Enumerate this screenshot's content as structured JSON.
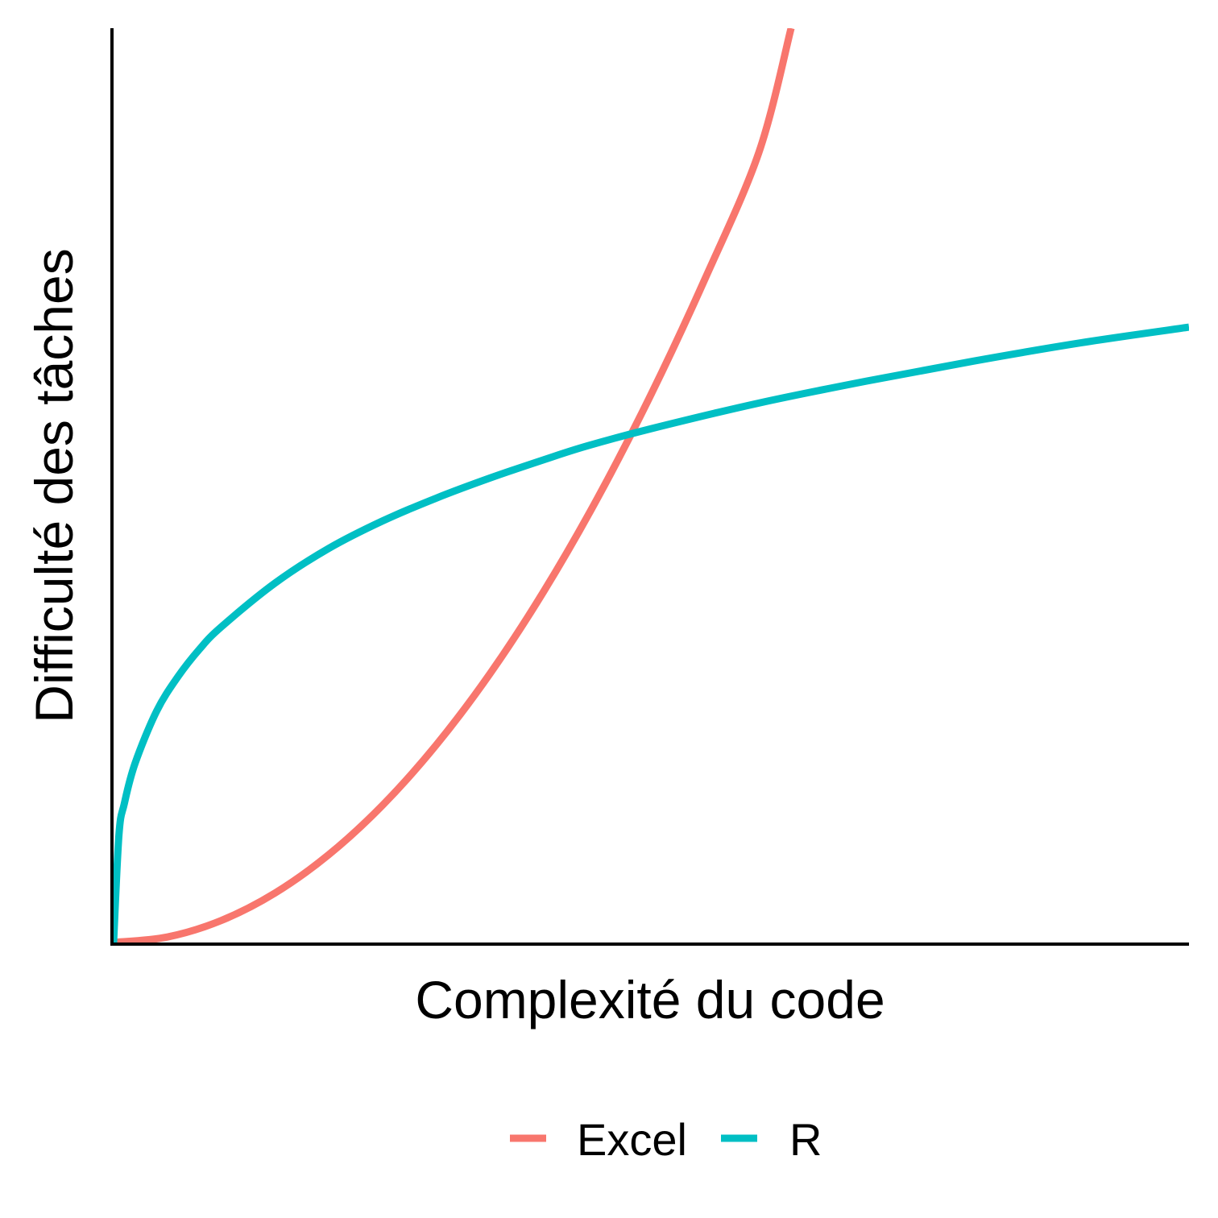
{
  "chart_data": {
    "type": "line",
    "title": "",
    "xlabel": "Complexité du code",
    "ylabel": "Difficulté des tâches",
    "xlim": [
      0,
      1
    ],
    "ylim": [
      0,
      1
    ],
    "grid": false,
    "ticks": false,
    "legend_position": "bottom",
    "series": [
      {
        "name": "Excel",
        "color": "#F8766D",
        "x": [
          0,
          0.05,
          0.1,
          0.15,
          0.2,
          0.25,
          0.3,
          0.35,
          0.4,
          0.45,
          0.5,
          0.55,
          0.6,
          0.63
        ],
        "y": [
          0,
          0.006,
          0.024,
          0.054,
          0.096,
          0.15,
          0.216,
          0.294,
          0.384,
          0.486,
          0.6,
          0.726,
          0.864,
          1.0
        ]
      },
      {
        "name": "R",
        "color": "#00BFC4",
        "x": [
          0,
          0.005,
          0.01,
          0.02,
          0.04,
          0.06,
          0.08,
          0.1,
          0.15,
          0.2,
          0.25,
          0.3,
          0.35,
          0.4,
          0.44,
          0.5,
          0.6,
          0.7,
          0.8,
          0.9,
          1.0
        ],
        "y": [
          0,
          0.118,
          0.152,
          0.196,
          0.253,
          0.291,
          0.321,
          0.345,
          0.393,
          0.431,
          0.461,
          0.486,
          0.508,
          0.528,
          0.543,
          0.562,
          0.59,
          0.614,
          0.636,
          0.656,
          0.673
        ]
      }
    ]
  }
}
